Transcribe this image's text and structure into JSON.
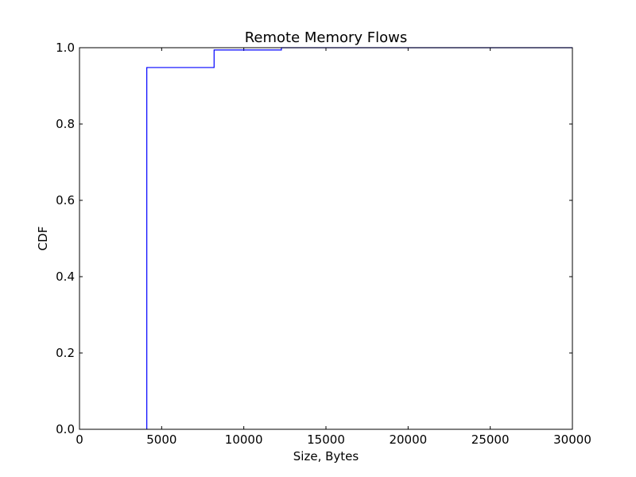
{
  "chart_data": {
    "type": "line",
    "step": true,
    "title": "Remote Memory Flows",
    "xlabel": "Size, Bytes",
    "ylabel": "CDF",
    "xlim": [
      0,
      30000
    ],
    "ylim": [
      0,
      1.0
    ],
    "xticks": [
      0,
      5000,
      10000,
      15000,
      20000,
      25000,
      30000
    ],
    "yticks": [
      0.0,
      0.2,
      0.4,
      0.6,
      0.8,
      1.0
    ],
    "xtick_labels": [
      "0",
      "5000",
      "10000",
      "15000",
      "20000",
      "25000",
      "30000"
    ],
    "ytick_labels": [
      "0.0",
      "0.2",
      "0.4",
      "0.6",
      "0.8",
      "1.0"
    ],
    "grid": false,
    "series": [
      {
        "color": "#0000ff",
        "x": [
          4096,
          4096,
          8192,
          8192,
          12288,
          12288,
          30000
        ],
        "y": [
          0.0,
          0.948,
          0.948,
          0.994,
          0.994,
          1.0,
          1.0
        ]
      }
    ]
  }
}
